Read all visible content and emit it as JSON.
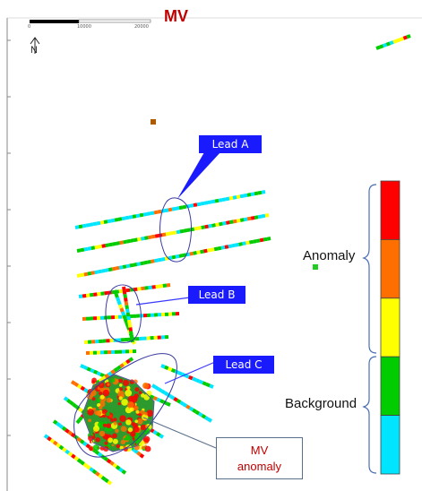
{
  "title": "MV",
  "scale_bar": {
    "labels": [
      "0",
      "10000",
      "20000"
    ]
  },
  "north_arrow": {
    "label": "N"
  },
  "callouts": [
    {
      "id": "lead-a",
      "label": "Lead A"
    },
    {
      "id": "lead-b",
      "label": "Lead B"
    },
    {
      "id": "lead-c",
      "label": "Lead C"
    }
  ],
  "mv_anomaly_label": "MV\nanomaly",
  "legend": {
    "anomaly_label": "Anomaly",
    "background_label": "Background",
    "colors": [
      "#ff0000",
      "#ff6f00",
      "#ffff00",
      "#00cc00",
      "#00e5ff"
    ]
  },
  "trace_colors": [
    "#00e5ff",
    "#00cc00",
    "#ffff00",
    "#ff6f00",
    "#ff0000"
  ],
  "callout_color": "#1a1aff",
  "title_color": "#c00000"
}
